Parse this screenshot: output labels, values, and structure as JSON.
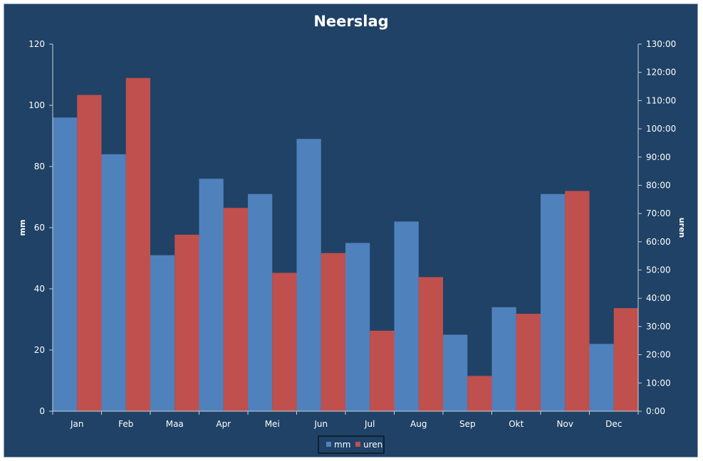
{
  "colors": {
    "background": "#1f4266",
    "mm": "#4f81bd",
    "uren": "#c0504d",
    "axis": "#c8d0da",
    "text": "#ffffff"
  },
  "chart_data": {
    "type": "bar",
    "title": "Neerslag",
    "ylabel": "mm",
    "y2label": "uren",
    "categories": [
      "Jan",
      "Feb",
      "Maa",
      "Apr",
      "Mei",
      "Jun",
      "Jul",
      "Aug",
      "Sep",
      "Okt",
      "Nov",
      "Dec"
    ],
    "series": [
      {
        "name": "mm",
        "axis": "left",
        "values": [
          96,
          84,
          51,
          76,
          71,
          89,
          55,
          62,
          25,
          34,
          71,
          22
        ]
      },
      {
        "name": "uren",
        "axis": "right",
        "values": [
          "112:00",
          "118:00",
          "62:30",
          "72:00",
          "49:00",
          "56:00",
          "28:30",
          "47:30",
          "12:30",
          "34:30",
          "78:00",
          "36:30"
        ]
      }
    ],
    "ylim": [
      0,
      120
    ],
    "yticks": [
      "0",
      "20",
      "40",
      "60",
      "80",
      "100",
      "120"
    ],
    "y2lim": [
      "0:00",
      "130:00"
    ],
    "y2ticks": [
      "0:00",
      "10:00",
      "20:00",
      "30:00",
      "40:00",
      "50:00",
      "60:00",
      "70:00",
      "80:00",
      "90:00",
      "100:00",
      "110:00",
      "120:00",
      "130:00"
    ],
    "legend": "bottom",
    "grid": false
  }
}
